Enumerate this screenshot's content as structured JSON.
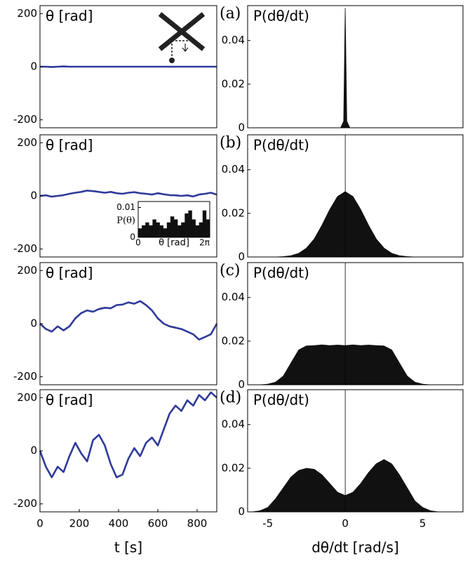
{
  "chart_data": [
    {
      "type": "line",
      "annotation": "θ [rad]",
      "x": [
        0,
        30,
        60,
        90,
        120,
        150,
        180,
        210,
        240,
        270,
        300,
        330,
        360,
        390,
        420,
        450,
        480,
        510,
        540,
        570,
        600,
        630,
        660,
        690,
        720,
        750,
        780,
        810,
        840,
        870,
        900
      ],
      "series": [
        {
          "color": "#2e3a9a",
          "values": [
            0,
            0,
            -1,
            0,
            1,
            0,
            0,
            0,
            0,
            0,
            0,
            0,
            0,
            0,
            0,
            0,
            0,
            0,
            0,
            0,
            0,
            0,
            0,
            0,
            0,
            0,
            0,
            0,
            0,
            0,
            0
          ]
        }
      ],
      "xlim": [
        0,
        900
      ],
      "ylim": [
        -230,
        230
      ],
      "yticks": [
        -200,
        0,
        200
      ]
    },
    {
      "type": "area",
      "panel_label": "(a)",
      "annotation": "P(dθ/dt)",
      "x": [
        -6.3,
        -0.3,
        -0.1,
        0,
        0.1,
        0.3,
        7.6
      ],
      "values": [
        0,
        0,
        0.003,
        0.055,
        0.003,
        0,
        0
      ],
      "color": "#111111",
      "xlim": [
        -6.3,
        7.6
      ],
      "ylim": [
        0,
        0.056
      ],
      "yticks": [
        0,
        0.02,
        0.04
      ],
      "zero_line": false
    },
    {
      "type": "line",
      "annotation": "θ [rad]",
      "x": [
        0,
        30,
        60,
        90,
        120,
        150,
        180,
        210,
        240,
        270,
        300,
        330,
        360,
        390,
        420,
        450,
        480,
        510,
        540,
        570,
        600,
        630,
        660,
        690,
        720,
        750,
        780,
        810,
        840,
        870,
        900
      ],
      "series": [
        {
          "color": "#2e3a9a",
          "values": [
            0,
            2,
            -3,
            0,
            3,
            8,
            12,
            15,
            20,
            18,
            15,
            12,
            15,
            10,
            8,
            12,
            14,
            10,
            8,
            5,
            10,
            6,
            3,
            2,
            0,
            2,
            -2,
            5,
            8,
            12,
            5
          ]
        }
      ],
      "xlim": [
        0,
        900
      ],
      "ylim": [
        -230,
        230
      ],
      "yticks": [
        -200,
        0,
        200
      ]
    },
    {
      "type": "area",
      "panel_label": "(b)",
      "annotation": "P(dθ/dt)",
      "x": [
        -6,
        -5.5,
        -5,
        -4.5,
        -4,
        -3.5,
        -3,
        -2.5,
        -2,
        -1.5,
        -1,
        -0.5,
        0,
        0.5,
        1,
        1.5,
        2,
        2.5,
        3,
        3.5,
        4,
        4.5,
        5,
        5.5,
        6
      ],
      "values": [
        0,
        0,
        0,
        0,
        0.0002,
        0.0006,
        0.0017,
        0.0041,
        0.0083,
        0.0146,
        0.0218,
        0.0277,
        0.03,
        0.0277,
        0.0218,
        0.0146,
        0.0083,
        0.0041,
        0.0017,
        0.0006,
        0.0002,
        0,
        0,
        0,
        0
      ],
      "color": "#111111",
      "xlim": [
        -6.3,
        7.6
      ],
      "ylim": [
        0,
        0.056
      ],
      "yticks": [
        0,
        0.02,
        0.04
      ],
      "zero_line": true
    },
    {
      "type": "line",
      "annotation": "θ [rad]",
      "x": [
        0,
        30,
        60,
        90,
        120,
        150,
        180,
        210,
        240,
        270,
        300,
        330,
        360,
        390,
        420,
        450,
        480,
        510,
        540,
        570,
        600,
        630,
        660,
        690,
        720,
        750,
        780,
        810,
        840,
        870,
        900
      ],
      "series": [
        {
          "color": "#2e3a9a",
          "values": [
            0,
            -20,
            -30,
            -10,
            -25,
            -10,
            20,
            40,
            50,
            45,
            55,
            60,
            58,
            70,
            72,
            80,
            75,
            85,
            70,
            50,
            20,
            0,
            -10,
            -15,
            -20,
            -30,
            -40,
            -60,
            -50,
            -40,
            0
          ]
        }
      ],
      "xlim": [
        0,
        900
      ],
      "ylim": [
        -230,
        230
      ],
      "yticks": [
        -200,
        0,
        200
      ]
    },
    {
      "type": "area",
      "panel_label": "(c)",
      "annotation": "P(dθ/dt)",
      "x": [
        -6,
        -5.5,
        -5,
        -4.5,
        -4,
        -3.5,
        -3,
        -2.5,
        -2,
        -1.5,
        -1,
        -0.5,
        0,
        0.5,
        1,
        1.5,
        2,
        2.5,
        3,
        3.5,
        4,
        4.5,
        5,
        5.5,
        6
      ],
      "values": [
        0,
        0,
        0.0003,
        0.0012,
        0.004,
        0.01,
        0.016,
        0.0178,
        0.018,
        0.0183,
        0.018,
        0.0182,
        0.018,
        0.0183,
        0.018,
        0.0182,
        0.018,
        0.0178,
        0.016,
        0.01,
        0.004,
        0.0012,
        0.0003,
        0,
        0
      ],
      "color": "#111111",
      "xlim": [
        -6.3,
        7.6
      ],
      "ylim": [
        0,
        0.056
      ],
      "yticks": [
        0,
        0.02,
        0.04
      ],
      "zero_line": true
    },
    {
      "type": "line",
      "annotation": "θ [rad]",
      "x": [
        0,
        30,
        60,
        90,
        120,
        150,
        180,
        210,
        240,
        270,
        300,
        330,
        360,
        390,
        420,
        450,
        480,
        510,
        540,
        570,
        600,
        630,
        660,
        690,
        720,
        750,
        780,
        810,
        840,
        870,
        900
      ],
      "series": [
        {
          "color": "#2e3a9a",
          "values": [
            0,
            -60,
            -100,
            -60,
            -80,
            -20,
            30,
            -10,
            -40,
            40,
            60,
            20,
            -50,
            -100,
            -90,
            -30,
            10,
            -20,
            30,
            50,
            20,
            80,
            140,
            170,
            150,
            190,
            170,
            210,
            190,
            220,
            200
          ]
        }
      ],
      "xlim": [
        0,
        900
      ],
      "ylim": [
        -230,
        230
      ],
      "yticks": [
        -200,
        0,
        200
      ],
      "xticks": [
        0,
        200,
        400,
        600,
        800
      ],
      "xlabel": "t [s]"
    },
    {
      "type": "area",
      "panel_label": "(d)",
      "annotation": "P(dθ/dt)",
      "x": [
        -6,
        -5.5,
        -5,
        -4.5,
        -4,
        -3.5,
        -3,
        -2.5,
        -2,
        -1.5,
        -1,
        -0.5,
        0,
        0.5,
        1,
        1.5,
        2,
        2.5,
        3,
        3.5,
        4,
        4.5,
        5,
        5.5,
        6
      ],
      "values": [
        0,
        0.0005,
        0.002,
        0.006,
        0.011,
        0.016,
        0.019,
        0.02,
        0.0195,
        0.017,
        0.013,
        0.009,
        0.0075,
        0.009,
        0.013,
        0.018,
        0.022,
        0.024,
        0.022,
        0.017,
        0.011,
        0.005,
        0.002,
        0.0005,
        0
      ],
      "color": "#111111",
      "xlim": [
        -6.3,
        7.6
      ],
      "ylim": [
        0,
        0.056
      ],
      "yticks": [
        0,
        0.02,
        0.04
      ],
      "xticks": [
        -5,
        0,
        5
      ],
      "xlabel": "dθ/dt [rad/s]",
      "zero_line": true
    },
    {
      "type": "histogram",
      "ylabel": "P(θ)",
      "xlabel": "θ [rad]",
      "bins": [
        0,
        0.314,
        0.628,
        0.942,
        1.257,
        1.571,
        1.885,
        2.199,
        2.513,
        2.827,
        3.142,
        3.456,
        3.77,
        4.084,
        4.398,
        4.712,
        5.027,
        5.341,
        5.655,
        5.969,
        6.283
      ],
      "values": [
        0.003,
        0.004,
        0.005,
        0.004,
        0.006,
        0.005,
        0.004,
        0.003,
        0.005,
        0.007,
        0.006,
        0.004,
        0.005,
        0.008,
        0.009,
        0.006,
        0.004,
        0.005,
        0.009,
        0.006
      ],
      "color": "#111111",
      "xlim": [
        0,
        6.283
      ],
      "ylim": [
        0,
        0.012
      ],
      "yticks": [
        0,
        0.01
      ],
      "xticks": [
        0,
        {
          "value": 6.283,
          "label": "2π"
        }
      ]
    }
  ]
}
